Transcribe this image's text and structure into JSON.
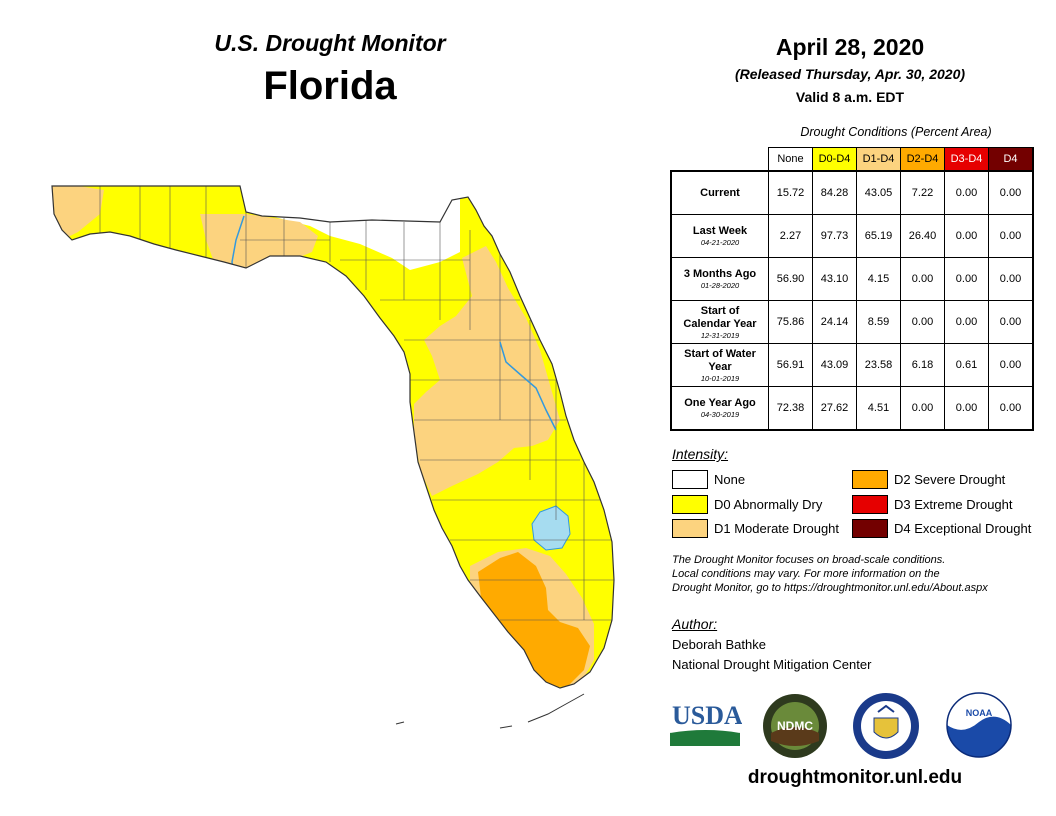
{
  "header": {
    "monitor_title": "U.S. Drought Monitor",
    "state": "Florida",
    "date": "April 28, 2020",
    "released": "(Released Thursday, Apr. 30, 2020)",
    "valid": "Valid 8 a.m. EDT"
  },
  "table": {
    "caption": "Drought Conditions (Percent Area)",
    "columns": [
      {
        "label": "None",
        "bg": "#ffffff",
        "fg": "#000000"
      },
      {
        "label": "D0-D4",
        "bg": "#ffff00",
        "fg": "#000000"
      },
      {
        "label": "D1-D4",
        "bg": "#fcd37f",
        "fg": "#000000"
      },
      {
        "label": "D2-D4",
        "bg": "#ffaa00",
        "fg": "#000000"
      },
      {
        "label": "D3-D4",
        "bg": "#e60000",
        "fg": "#ffffff"
      },
      {
        "label": "D4",
        "bg": "#730000",
        "fg": "#ffffff"
      }
    ],
    "rows": [
      {
        "label": "Current",
        "date": "",
        "values": [
          "15.72",
          "84.28",
          "43.05",
          "7.22",
          "0.00",
          "0.00"
        ]
      },
      {
        "label": "Last Week",
        "date": "04-21-2020",
        "values": [
          "2.27",
          "97.73",
          "65.19",
          "26.40",
          "0.00",
          "0.00"
        ]
      },
      {
        "label": "3 Months Ago",
        "date": "01-28-2020",
        "values": [
          "56.90",
          "43.10",
          "4.15",
          "0.00",
          "0.00",
          "0.00"
        ]
      },
      {
        "label": "Start of Calendar Year",
        "date": "12-31-2019",
        "values": [
          "75.86",
          "24.14",
          "8.59",
          "0.00",
          "0.00",
          "0.00"
        ]
      },
      {
        "label": "Start of Water Year",
        "date": "10-01-2019",
        "values": [
          "56.91",
          "43.09",
          "23.58",
          "6.18",
          "0.61",
          "0.00"
        ]
      },
      {
        "label": "One Year Ago",
        "date": "04-30-2019",
        "values": [
          "72.38",
          "27.62",
          "4.51",
          "0.00",
          "0.00",
          "0.00"
        ]
      }
    ]
  },
  "legend": {
    "title": "Intensity:",
    "items": [
      {
        "label": "None",
        "color": "#ffffff"
      },
      {
        "label": "D0 Abnormally Dry",
        "color": "#ffff00"
      },
      {
        "label": "D1 Moderate Drought",
        "color": "#fcd37f"
      },
      {
        "label": "D2 Severe Drought",
        "color": "#ffaa00"
      },
      {
        "label": "D3 Extreme Drought",
        "color": "#e60000"
      },
      {
        "label": "D4 Exceptional Drought",
        "color": "#730000"
      }
    ]
  },
  "note": {
    "line1": "The Drought Monitor focuses on broad-scale conditions.",
    "line2": "Local conditions may vary. For more information on the",
    "line3": "Drought Monitor, go to https://droughtmonitor.unl.edu/About.aspx"
  },
  "author": {
    "title": "Author:",
    "name": "Deborah Bathke",
    "org": "National Drought Mitigation Center"
  },
  "logos": {
    "usda": "USDA",
    "ndmc": "NDMC",
    "noaa": "NOAA"
  },
  "footer_url": "droughtmonitor.unl.edu",
  "colors": {
    "none": "#ffffff",
    "d0": "#ffff00",
    "d1": "#fcd37f",
    "d2": "#ffaa00",
    "water": "#a6dcf0",
    "river": "#3399dd"
  }
}
